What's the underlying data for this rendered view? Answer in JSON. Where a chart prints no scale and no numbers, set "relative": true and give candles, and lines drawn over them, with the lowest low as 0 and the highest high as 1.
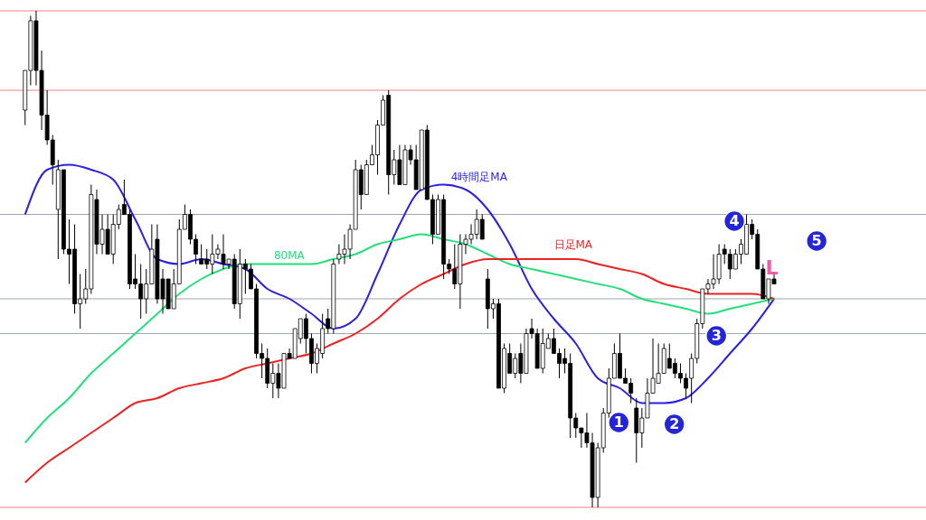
{
  "chart_data": {
    "type": "candlestick",
    "relative": true,
    "categories": [
      null,
      null,
      null,
      null,
      null,
      null,
      null,
      null,
      null,
      null,
      null,
      null,
      null,
      null,
      null,
      null,
      null,
      null,
      null,
      null,
      null,
      null,
      null,
      null,
      null,
      null,
      null,
      null,
      null,
      null,
      null,
      null,
      null,
      null,
      null,
      null,
      null,
      null,
      null,
      null,
      null,
      null,
      null,
      null,
      null,
      null,
      null,
      null,
      null,
      null,
      null,
      null,
      null,
      null,
      null,
      null,
      null,
      null,
      null,
      null,
      null,
      null,
      null,
      null,
      null,
      null,
      null,
      null,
      null,
      null,
      null,
      null,
      null,
      null,
      null,
      null,
      null,
      null,
      null,
      null,
      null,
      null,
      null,
      null,
      null,
      null,
      null,
      null,
      null,
      null,
      null,
      null,
      null,
      null,
      null,
      null,
      null,
      null,
      null,
      null,
      null,
      null,
      null,
      null,
      null,
      null,
      null,
      null,
      null,
      null,
      null,
      null,
      null,
      null,
      null,
      null,
      null,
      null,
      null,
      null,
      null,
      null,
      null,
      null,
      null,
      null,
      null,
      null,
      null,
      null,
      null,
      null,
      null,
      null,
      null,
      null,
      null
    ],
    "ohlc": [
      [
        0.8,
        0.88,
        0.77,
        0.88
      ],
      [
        0.88,
        0.99,
        0.85,
        0.98
      ],
      [
        0.98,
        1.0,
        0.85,
        0.88
      ],
      [
        0.88,
        0.92,
        0.76,
        0.79
      ],
      [
        0.79,
        0.84,
        0.73,
        0.74
      ],
      [
        0.74,
        0.75,
        0.65,
        0.69
      ],
      [
        0.6,
        0.7,
        0.5,
        0.68
      ],
      [
        0.68,
        0.68,
        0.51,
        0.52
      ],
      [
        0.52,
        0.58,
        0.45,
        0.51
      ],
      [
        0.52,
        0.57,
        0.39,
        0.41
      ],
      [
        0.41,
        0.47,
        0.36,
        0.42
      ],
      [
        0.42,
        0.48,
        0.41,
        0.44
      ],
      [
        0.44,
        0.65,
        0.43,
        0.63
      ],
      [
        0.62,
        0.64,
        0.51,
        0.53
      ],
      [
        0.53,
        0.59,
        0.51,
        0.56
      ],
      [
        0.56,
        0.59,
        0.51,
        0.51
      ],
      [
        0.51,
        0.59,
        0.49,
        0.57
      ],
      [
        0.57,
        0.61,
        0.56,
        0.6
      ],
      [
        0.61,
        0.66,
        0.59,
        0.59
      ],
      [
        0.59,
        0.6,
        0.44,
        0.45
      ],
      [
        0.46,
        0.51,
        0.44,
        0.45
      ],
      [
        0.45,
        0.49,
        0.38,
        0.42
      ],
      [
        0.42,
        0.48,
        0.39,
        0.45
      ],
      [
        0.45,
        0.57,
        0.45,
        0.52
      ],
      [
        0.54,
        0.57,
        0.41,
        0.42
      ],
      [
        0.46,
        0.48,
        0.39,
        0.42
      ],
      [
        0.46,
        0.46,
        0.4,
        0.4
      ],
      [
        0.4,
        0.48,
        0.4,
        0.45
      ],
      [
        0.45,
        0.58,
        0.45,
        0.56
      ],
      [
        0.56,
        0.61,
        0.56,
        0.59
      ],
      [
        0.59,
        0.6,
        0.53,
        0.54
      ],
      [
        0.54,
        0.55,
        0.49,
        0.51
      ],
      [
        0.5,
        0.53,
        0.49,
        0.49
      ],
      [
        0.5,
        0.52,
        0.48,
        0.49
      ],
      [
        0.49,
        0.55,
        0.47,
        0.51
      ],
      [
        0.51,
        0.53,
        0.5,
        0.52
      ],
      [
        0.51,
        0.55,
        0.48,
        0.49
      ],
      [
        0.49,
        0.5,
        0.48,
        0.5
      ],
      [
        0.5,
        0.51,
        0.4,
        0.41
      ],
      [
        0.41,
        0.52,
        0.38,
        0.49
      ],
      [
        0.49,
        0.5,
        0.43,
        0.48
      ],
      [
        0.48,
        0.49,
        0.44,
        0.44
      ],
      [
        0.44,
        0.45,
        0.3,
        0.31
      ],
      [
        0.31,
        0.33,
        0.26,
        0.3
      ],
      [
        0.3,
        0.32,
        0.24,
        0.25
      ],
      [
        0.25,
        0.29,
        0.22,
        0.27
      ],
      [
        0.27,
        0.29,
        0.22,
        0.24
      ],
      [
        0.24,
        0.31,
        0.24,
        0.31
      ],
      [
        0.31,
        0.32,
        0.3,
        0.3
      ],
      [
        0.3,
        0.36,
        0.3,
        0.36
      ],
      [
        0.34,
        0.38,
        0.33,
        0.38
      ],
      [
        0.38,
        0.39,
        0.31,
        0.34
      ],
      [
        0.34,
        0.35,
        0.27,
        0.29
      ],
      [
        0.29,
        0.33,
        0.27,
        0.32
      ],
      [
        0.31,
        0.39,
        0.3,
        0.36
      ],
      [
        0.38,
        0.4,
        0.35,
        0.36
      ],
      [
        0.36,
        0.5,
        0.35,
        0.49
      ],
      [
        0.5,
        0.53,
        0.49,
        0.51
      ],
      [
        0.51,
        0.55,
        0.49,
        0.52
      ],
      [
        0.52,
        0.57,
        0.5,
        0.56
      ],
      [
        0.56,
        0.7,
        0.56,
        0.68
      ],
      [
        0.68,
        0.69,
        0.6,
        0.63
      ],
      [
        0.63,
        0.7,
        0.63,
        0.69
      ],
      [
        0.69,
        0.73,
        0.69,
        0.71
      ],
      [
        0.71,
        0.78,
        0.67,
        0.77
      ],
      [
        0.77,
        0.83,
        0.77,
        0.82
      ],
      [
        0.83,
        0.84,
        0.63,
        0.67
      ],
      [
        0.67,
        0.72,
        0.65,
        0.7
      ],
      [
        0.7,
        0.73,
        0.65,
        0.65
      ],
      [
        0.65,
        0.73,
        0.65,
        0.72
      ],
      [
        0.72,
        0.73,
        0.69,
        0.7
      ],
      [
        0.7,
        0.73,
        0.64,
        0.64
      ],
      [
        0.64,
        0.76,
        0.64,
        0.76
      ],
      [
        0.76,
        0.77,
        0.62,
        0.62
      ],
      [
        0.62,
        0.63,
        0.53,
        0.55
      ],
      [
        0.55,
        0.63,
        0.55,
        0.62
      ],
      [
        0.62,
        0.63,
        0.46,
        0.49
      ],
      [
        0.49,
        0.5,
        0.47,
        0.48
      ],
      [
        0.48,
        0.53,
        0.44,
        0.45
      ],
      [
        0.45,
        0.55,
        0.4,
        0.53
      ],
      [
        0.53,
        0.55,
        0.51,
        0.54
      ],
      [
        0.54,
        0.57,
        0.53,
        0.55
      ],
      [
        0.55,
        0.6,
        0.54,
        0.58
      ],
      [
        0.58,
        0.59,
        0.54,
        0.54
      ],
      [
        0.46,
        0.48,
        0.36,
        0.4
      ],
      [
        0.4,
        0.42,
        0.38,
        0.41
      ],
      [
        0.41,
        0.42,
        0.24,
        0.24
      ],
      [
        0.24,
        0.33,
        0.23,
        0.32
      ],
      [
        0.31,
        0.33,
        0.27,
        0.27
      ],
      [
        0.27,
        0.31,
        0.26,
        0.3
      ],
      [
        0.31,
        0.33,
        0.25,
        0.27
      ],
      [
        0.27,
        0.36,
        0.27,
        0.35
      ],
      [
        0.36,
        0.38,
        0.34,
        0.35
      ],
      [
        0.35,
        0.36,
        0.28,
        0.28
      ],
      [
        0.28,
        0.36,
        0.27,
        0.33
      ],
      [
        0.32,
        0.35,
        0.32,
        0.34
      ],
      [
        0.34,
        0.36,
        0.31,
        0.31
      ],
      [
        0.31,
        0.32,
        0.26,
        0.29
      ],
      [
        0.3,
        0.32,
        0.27,
        0.29
      ],
      [
        0.29,
        0.31,
        0.14,
        0.18
      ],
      [
        0.18,
        0.19,
        0.14,
        0.16
      ],
      [
        0.16,
        0.16,
        0.12,
        0.15
      ],
      [
        0.15,
        0.19,
        0.12,
        0.13
      ],
      [
        0.13,
        0.15,
        0.0,
        0.02
      ],
      [
        0.02,
        0.13,
        0.0,
        0.12
      ],
      [
        0.12,
        0.2,
        0.11,
        0.19
      ],
      [
        0.19,
        0.28,
        0.18,
        0.26
      ],
      [
        0.26,
        0.33,
        0.26,
        0.31
      ],
      [
        0.31,
        0.35,
        0.26,
        0.26
      ],
      [
        0.26,
        0.28,
        0.25,
        0.25
      ],
      [
        0.25,
        0.26,
        0.21,
        0.23
      ],
      [
        0.2,
        0.22,
        0.09,
        0.15
      ],
      [
        0.15,
        0.2,
        0.12,
        0.18
      ],
      [
        0.18,
        0.26,
        0.18,
        0.23
      ],
      [
        0.23,
        0.34,
        0.23,
        0.26
      ],
      [
        0.25,
        0.33,
        0.25,
        0.27
      ],
      [
        0.27,
        0.33,
        0.27,
        0.32
      ],
      [
        0.3,
        0.33,
        0.28,
        0.28
      ],
      [
        0.29,
        0.3,
        0.26,
        0.27
      ],
      [
        0.27,
        0.29,
        0.25,
        0.26
      ],
      [
        0.26,
        0.27,
        0.22,
        0.24
      ],
      [
        0.26,
        0.31,
        0.21,
        0.3
      ],
      [
        0.3,
        0.38,
        0.29,
        0.37
      ],
      [
        0.37,
        0.44,
        0.36,
        0.44
      ],
      [
        0.44,
        0.46,
        0.43,
        0.45
      ],
      [
        0.45,
        0.51,
        0.44,
        0.46
      ],
      [
        0.46,
        0.53,
        0.45,
        0.51
      ],
      [
        0.52,
        0.53,
        0.49,
        0.51
      ],
      [
        0.51,
        0.52,
        0.46,
        0.48
      ],
      [
        0.48,
        0.52,
        0.48,
        0.51
      ],
      [
        0.51,
        0.54,
        0.49,
        0.53
      ],
      [
        0.51,
        0.59,
        0.51,
        0.57
      ],
      [
        0.57,
        0.58,
        0.54,
        0.55
      ],
      [
        0.55,
        0.56,
        0.48,
        0.48
      ],
      [
        0.48,
        0.49,
        0.42,
        0.42
      ],
      [
        0.42,
        0.46,
        0.41,
        0.46
      ],
      [
        0.46,
        0.47,
        0.45,
        0.45
      ]
    ],
    "series": [
      {
        "name": "4時間足MA",
        "type": "line",
        "color": "#2b1fe0",
        "values": [
          0.59,
          null,
          null,
          null,
          0.68,
          null,
          null,
          null,
          0.69,
          null,
          null,
          null,
          0.68,
          null,
          null,
          null,
          0.66,
          null,
          null,
          null,
          0.58,
          null,
          null,
          null,
          0.5,
          null,
          null,
          null,
          0.49,
          null,
          null,
          null,
          0.5,
          null,
          null,
          null,
          0.49,
          null,
          null,
          null,
          0.48,
          null,
          null,
          null,
          0.44,
          null,
          null,
          null,
          0.42,
          null,
          null,
          null,
          0.39,
          null,
          null,
          null,
          0.36,
          null,
          null,
          null,
          0.38,
          null,
          null,
          null,
          0.47,
          null,
          null,
          null,
          0.57,
          null,
          null,
          null,
          0.64,
          null,
          null,
          null,
          0.65,
          null,
          null,
          null,
          0.64,
          null,
          null,
          null,
          0.6,
          null,
          null,
          null,
          0.53,
          null,
          null,
          null,
          0.44,
          null,
          null,
          null,
          0.38,
          null,
          null,
          null,
          0.33,
          null,
          null,
          null,
          0.26,
          null,
          null,
          null,
          0.24,
          null,
          null,
          null,
          0.21,
          null,
          null,
          null,
          0.21,
          null,
          null,
          null,
          0.22,
          null,
          null,
          null,
          0.26,
          null,
          null,
          null,
          0.31,
          null,
          null,
          null,
          0.36,
          null,
          null,
          null,
          0.42
        ]
      },
      {
        "name": "80MA",
        "type": "line",
        "color": "#22e07a",
        "values": [
          0.13,
          null,
          null,
          null,
          0.18,
          null,
          null,
          null,
          0.22,
          null,
          null,
          null,
          0.27,
          null,
          null,
          null,
          0.31,
          null,
          null,
          null,
          0.35,
          null,
          null,
          null,
          0.39,
          null,
          null,
          null,
          0.43,
          null,
          null,
          null,
          0.46,
          null,
          null,
          null,
          0.48,
          null,
          null,
          null,
          0.49,
          null,
          null,
          null,
          0.49,
          null,
          null,
          null,
          0.49,
          null,
          null,
          null,
          0.49,
          null,
          null,
          null,
          0.5,
          null,
          null,
          null,
          0.51,
          null,
          null,
          null,
          0.53,
          null,
          null,
          null,
          0.54,
          null,
          null,
          null,
          0.55,
          null,
          null,
          null,
          0.54,
          null,
          null,
          null,
          0.53,
          null,
          null,
          null,
          0.51,
          null,
          null,
          null,
          0.49,
          null,
          null,
          null,
          0.48,
          null,
          null,
          null,
          0.47,
          null,
          null,
          null,
          0.46,
          null,
          null,
          null,
          0.45,
          null,
          null,
          null,
          0.44,
          null,
          null,
          null,
          0.42,
          null,
          null,
          null,
          0.41,
          null,
          null,
          null,
          0.4,
          null,
          null,
          null,
          0.39,
          null,
          null,
          null,
          0.4,
          null,
          null,
          null,
          0.41,
          null,
          null,
          null,
          0.42
        ]
      },
      {
        "name": "日足MA",
        "type": "line",
        "color": "#ee2222",
        "values": [
          0.05,
          null,
          null,
          null,
          0.09,
          null,
          null,
          null,
          0.12,
          null,
          null,
          null,
          0.15,
          null,
          null,
          null,
          0.18,
          null,
          null,
          null,
          0.21,
          null,
          null,
          null,
          0.22,
          null,
          null,
          null,
          0.24,
          null,
          null,
          null,
          0.25,
          null,
          null,
          null,
          0.26,
          null,
          null,
          null,
          0.28,
          null,
          null,
          null,
          0.29,
          null,
          null,
          null,
          0.3,
          null,
          null,
          null,
          0.31,
          null,
          null,
          null,
          0.33,
          null,
          null,
          null,
          0.35,
          null,
          null,
          null,
          0.38,
          null,
          null,
          null,
          0.42,
          null,
          null,
          null,
          0.45,
          null,
          null,
          null,
          0.47,
          null,
          null,
          null,
          0.49,
          null,
          null,
          null,
          0.5,
          null,
          null,
          null,
          0.5,
          null,
          null,
          null,
          0.5,
          null,
          null,
          null,
          0.5,
          null,
          null,
          null,
          0.5,
          null,
          null,
          null,
          0.49,
          null,
          null,
          null,
          0.48,
          null,
          null,
          null,
          0.47,
          null,
          null,
          null,
          0.45,
          null,
          null,
          null,
          0.44,
          null,
          null,
          null,
          0.43,
          null,
          null,
          null,
          0.43,
          null,
          null,
          null,
          0.43,
          null,
          null,
          null,
          0.42
        ]
      }
    ],
    "ref_lines": [
      {
        "axis": "y",
        "value": 1.0,
        "color": "#f08080"
      },
      {
        "axis": "y",
        "value": 0.84,
        "color": "#f08080"
      },
      {
        "axis": "y",
        "value": 0.0,
        "color": "#f08080"
      },
      {
        "axis": "y",
        "value": 0.59,
        "color": "#9aa6b2"
      },
      {
        "axis": "y",
        "value": 0.42,
        "color": "#9aa6b2"
      },
      {
        "axis": "y",
        "value": 0.35,
        "color": "#9aa6b2"
      }
    ],
    "annotations": [
      "1",
      "2",
      "3",
      "4",
      "5",
      "L"
    ]
  }
}
